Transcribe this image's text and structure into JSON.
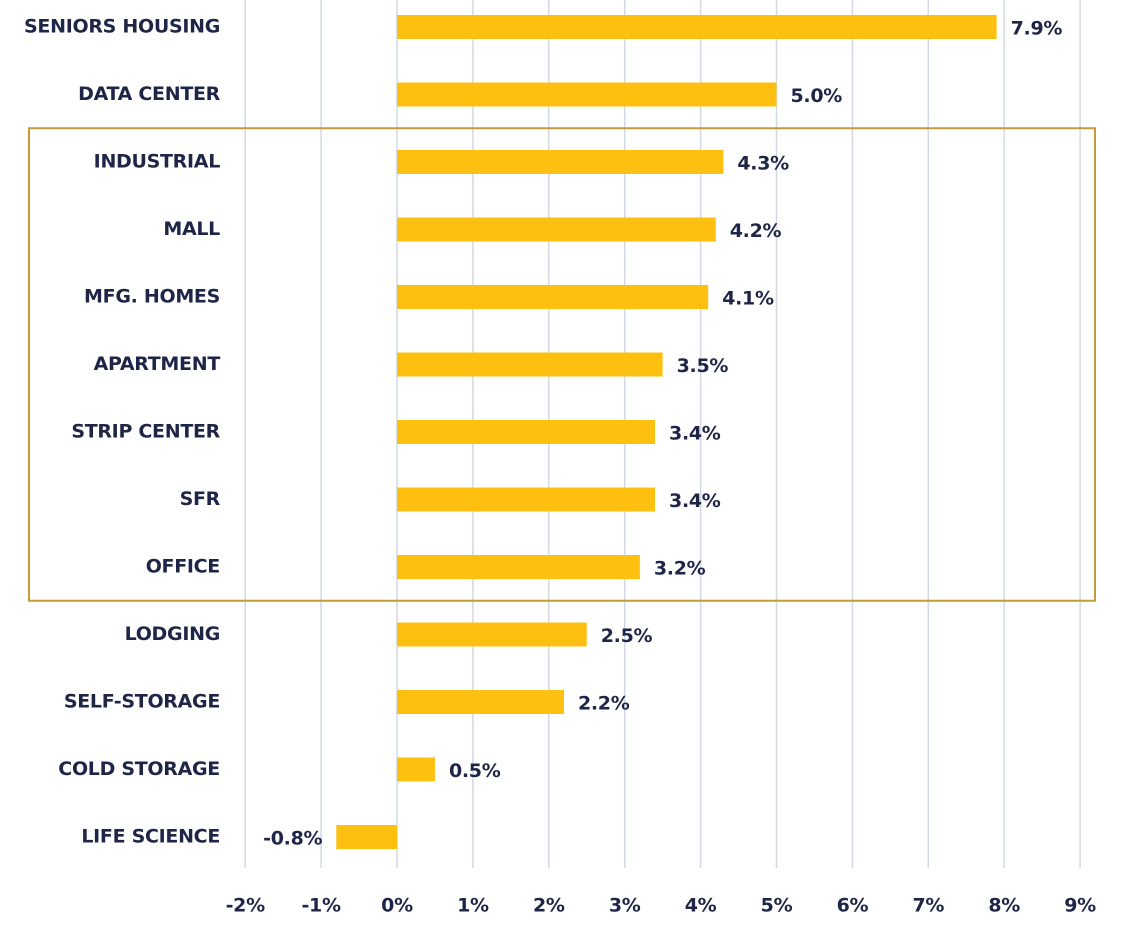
{
  "chart_data": {
    "type": "bar",
    "orientation": "horizontal",
    "categories": [
      "SENIORS HOUSING",
      "DATA CENTER",
      "INDUSTRIAL",
      "MALL",
      "MFG. HOMES",
      "APARTMENT",
      "STRIP CENTER",
      "SFR",
      "OFFICE",
      "LODGING",
      "SELF-STORAGE",
      "COLD STORAGE",
      "LIFE SCIENCE"
    ],
    "values": [
      7.9,
      5.0,
      4.3,
      4.2,
      4.1,
      3.5,
      3.4,
      3.4,
      3.2,
      2.5,
      2.2,
      0.5,
      -0.8
    ],
    "value_labels": [
      "7.9%",
      "5.0%",
      "4.3%",
      "4.2%",
      "4.1%",
      "3.5%",
      "3.4%",
      "3.4%",
      "3.2%",
      "2.5%",
      "2.2%",
      "0.5%",
      "-0.8%"
    ],
    "xlim": [
      -2,
      9
    ],
    "x_ticks": [
      -2,
      -1,
      0,
      1,
      2,
      3,
      4,
      5,
      6,
      7,
      8,
      9
    ],
    "x_tick_labels": [
      "-2%",
      "-1%",
      "0%",
      "1%",
      "2%",
      "3%",
      "4%",
      "5%",
      "6%",
      "7%",
      "8%",
      "9%"
    ],
    "grid": "vertical",
    "highlight": {
      "from_category": "INDUSTRIAL",
      "to_category": "OFFICE"
    },
    "title": "",
    "xlabel": "",
    "ylabel": ""
  },
  "colors": {
    "bar": "#fdc010",
    "text": "#1f2547",
    "grid": "#d3d8e6",
    "highlight_box": "#c49a3c"
  }
}
